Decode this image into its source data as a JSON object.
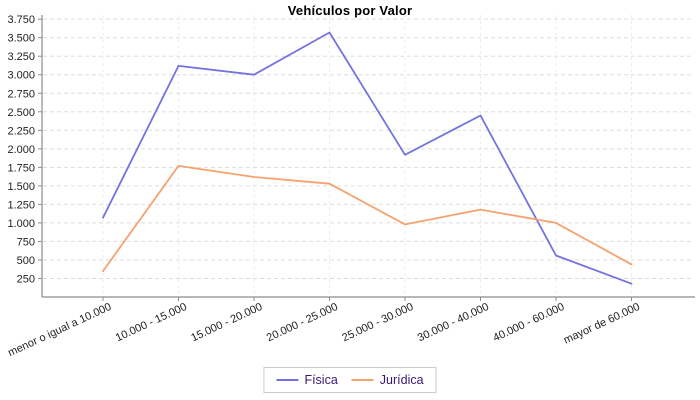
{
  "chart_data": {
    "type": "line",
    "title": "Vehículos por Valor",
    "categories": [
      "menor o igual a 10.000",
      "10.000 - 15.000",
      "15.000 - 20.000",
      "20.000 - 25.000",
      "25.000 - 30.000",
      "30.000 - 40.000",
      "40.000 - 60.000",
      "mayor de 60.000"
    ],
    "series": [
      {
        "name": "Física",
        "color": "#7473e1",
        "values": [
          1070,
          3120,
          3000,
          3570,
          1920,
          2450,
          560,
          180
        ]
      },
      {
        "name": "Jurídica",
        "color": "#f5a26e",
        "values": [
          350,
          1770,
          1620,
          1530,
          980,
          1180,
          1000,
          440
        ]
      }
    ],
    "ylim": [
      0,
      3820
    ],
    "y_ticks": [
      250,
      500,
      750,
      1000,
      1250,
      1500,
      1750,
      2000,
      2250,
      2500,
      2750,
      3000,
      3250,
      3500,
      3750
    ],
    "y_tick_labels": [
      "250",
      "500",
      "750",
      "1.000",
      "1.250",
      "1.500",
      "1.750",
      "2.000",
      "2.250",
      "2.500",
      "2.750",
      "3.000",
      "3.250",
      "3.500",
      "3.750"
    ],
    "grid": true,
    "legend_position": "bottom",
    "colors": {
      "axis": "#8c8c8c",
      "gridline": "#dddddd",
      "domain_gridline": "#ececec",
      "tick_text": "#222222",
      "legend_text": "#3c1970",
      "background": "#ffffff"
    }
  }
}
